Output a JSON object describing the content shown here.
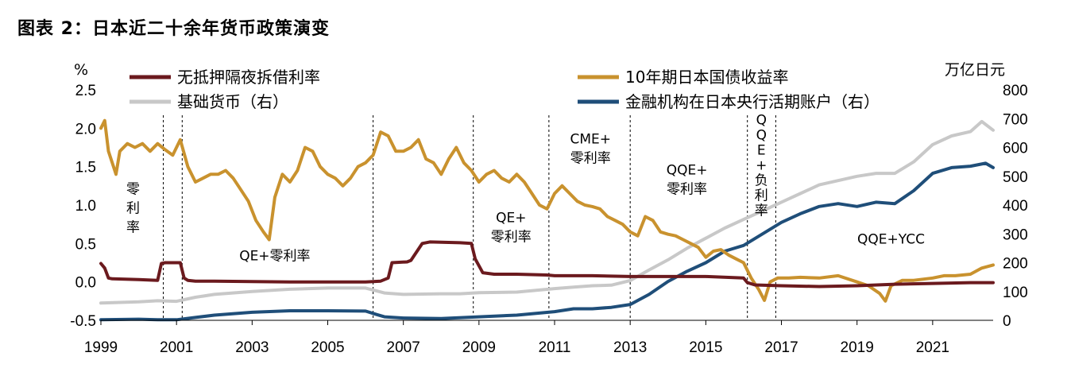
{
  "chart_data": {
    "type": "line",
    "title": "图表 2：日本近二十余年货币政策演变",
    "left_axis_unit": "%",
    "right_axis_unit": "万亿日元",
    "ylim_left": [
      -0.5,
      2.5
    ],
    "ylim_right": [
      0,
      800
    ],
    "yticks_left": [
      "2.5",
      "2.0",
      "1.5",
      "1.0",
      "0.5",
      "0.0",
      "-0.5"
    ],
    "yticks_right": [
      "800",
      "700",
      "600",
      "500",
      "400",
      "300",
      "200",
      "100",
      "0"
    ],
    "xticks": [
      "1999",
      "2001",
      "2003",
      "2005",
      "2007",
      "2009",
      "2011",
      "2013",
      "2015",
      "2017",
      "2019",
      "2021"
    ],
    "xlim": [
      1999.0,
      2022.6
    ],
    "legend_placement": "top",
    "colors": {
      "call_rate": "#6b1a1e",
      "jgb10y": "#c9922e",
      "monetary_base": "#c8c8c8",
      "boj_current": "#1f4e79"
    },
    "series": [
      {
        "key": "call_rate",
        "name": "无抵押隔夜拆借利率",
        "axis": "left",
        "x": [
          1999.0,
          1999.1,
          1999.2,
          1999.3,
          2000.0,
          2000.5,
          2000.6,
          2000.7,
          2001.1,
          2001.2,
          2001.3,
          2001.5,
          2002.0,
          2004.0,
          2006.0,
          2006.4,
          2006.6,
          2006.7,
          2007.1,
          2007.2,
          2007.5,
          2007.7,
          2008.5,
          2008.8,
          2008.9,
          2009.1,
          2009.4,
          2010.0,
          2010.8,
          2011.0,
          2012.0,
          2013.0,
          2014.0,
          2015.0,
          2016.0,
          2016.1,
          2016.3,
          2017.0,
          2018.0,
          2019.0,
          2020.0,
          2021.0,
          2022.0,
          2022.6
        ],
        "y": [
          0.24,
          0.18,
          0.05,
          0.04,
          0.03,
          0.02,
          0.24,
          0.25,
          0.25,
          0.05,
          0.02,
          0.01,
          0.01,
          0.0,
          0.0,
          0.01,
          0.05,
          0.25,
          0.26,
          0.28,
          0.5,
          0.52,
          0.51,
          0.5,
          0.3,
          0.12,
          0.1,
          0.1,
          0.09,
          0.08,
          0.08,
          0.07,
          0.07,
          0.07,
          0.05,
          -0.01,
          -0.04,
          -0.05,
          -0.06,
          -0.05,
          -0.03,
          -0.02,
          -0.01,
          -0.01
        ]
      },
      {
        "key": "jgb10y",
        "name": "10年期日本国债收益率",
        "axis": "left",
        "x": [
          1999.0,
          1999.1,
          1999.2,
          1999.4,
          1999.5,
          1999.7,
          1999.9,
          2000.1,
          2000.3,
          2000.5,
          2000.7,
          2000.9,
          2001.1,
          2001.3,
          2001.5,
          2001.7,
          2001.9,
          2002.1,
          2002.3,
          2002.5,
          2002.7,
          2002.9,
          2003.1,
          2003.3,
          2003.45,
          2003.6,
          2003.8,
          2004.0,
          2004.2,
          2004.4,
          2004.6,
          2004.8,
          2005.0,
          2005.2,
          2005.4,
          2005.6,
          2005.8,
          2006.0,
          2006.2,
          2006.4,
          2006.6,
          2006.8,
          2007.0,
          2007.2,
          2007.4,
          2007.6,
          2007.8,
          2008.0,
          2008.2,
          2008.4,
          2008.6,
          2008.8,
          2009.0,
          2009.2,
          2009.4,
          2009.6,
          2009.8,
          2010.0,
          2010.2,
          2010.4,
          2010.6,
          2010.8,
          2011.0,
          2011.2,
          2011.4,
          2011.6,
          2011.8,
          2012.0,
          2012.2,
          2012.4,
          2012.6,
          2012.8,
          2013.0,
          2013.2,
          2013.4,
          2013.6,
          2013.8,
          2014.0,
          2014.2,
          2014.4,
          2014.6,
          2014.8,
          2015.0,
          2015.2,
          2015.4,
          2015.6,
          2015.8,
          2016.0,
          2016.2,
          2016.4,
          2016.55,
          2016.7,
          2016.9,
          2017.0,
          2017.2,
          2017.5,
          2018.0,
          2018.5,
          2019.0,
          2019.3,
          2019.6,
          2019.75,
          2019.9,
          2020.2,
          2020.5,
          2021.0,
          2021.3,
          2021.6,
          2022.0,
          2022.3,
          2022.6
        ],
        "y": [
          2.0,
          2.1,
          1.7,
          1.4,
          1.7,
          1.8,
          1.75,
          1.8,
          1.7,
          1.8,
          1.72,
          1.65,
          1.85,
          1.5,
          1.3,
          1.35,
          1.4,
          1.4,
          1.45,
          1.35,
          1.2,
          1.05,
          0.8,
          0.65,
          0.55,
          1.1,
          1.4,
          1.3,
          1.45,
          1.75,
          1.7,
          1.5,
          1.4,
          1.35,
          1.25,
          1.35,
          1.5,
          1.55,
          1.65,
          1.95,
          1.9,
          1.7,
          1.7,
          1.75,
          1.85,
          1.6,
          1.55,
          1.4,
          1.6,
          1.75,
          1.55,
          1.45,
          1.3,
          1.4,
          1.45,
          1.35,
          1.3,
          1.4,
          1.3,
          1.15,
          1.0,
          0.95,
          1.15,
          1.25,
          1.15,
          1.05,
          1.0,
          0.98,
          0.95,
          0.85,
          0.8,
          0.75,
          0.65,
          0.6,
          0.85,
          0.8,
          0.65,
          0.62,
          0.6,
          0.55,
          0.5,
          0.45,
          0.32,
          0.4,
          0.42,
          0.35,
          0.3,
          0.25,
          0.05,
          -0.1,
          -0.24,
          0.0,
          0.05,
          0.05,
          0.05,
          0.06,
          0.05,
          0.08,
          0.0,
          -0.05,
          -0.15,
          -0.25,
          -0.05,
          0.02,
          0.02,
          0.05,
          0.08,
          0.08,
          0.1,
          0.18,
          0.22
        ]
      },
      {
        "key": "monetary_base",
        "name": "基础货币（右）",
        "axis": "right",
        "x": [
          1999.0,
          2000.0,
          2000.5,
          2001.0,
          2001.5,
          2002.0,
          2003.0,
          2004.0,
          2005.0,
          2006.0,
          2006.5,
          2007.0,
          2008.0,
          2008.5,
          2009.0,
          2010.0,
          2011.0,
          2011.5,
          2012.0,
          2012.5,
          2013.0,
          2013.5,
          2014.0,
          2014.5,
          2015.0,
          2015.5,
          2016.0,
          2016.5,
          2017.0,
          2017.5,
          2018.0,
          2018.5,
          2019.0,
          2019.5,
          2020.0,
          2020.5,
          2021.0,
          2021.5,
          2022.0,
          2022.3,
          2022.6
        ],
        "y": [
          60,
          64,
          68,
          66,
          80,
          90,
          100,
          108,
          112,
          112,
          95,
          90,
          92,
          92,
          96,
          98,
          110,
          115,
          120,
          122,
          138,
          175,
          210,
          250,
          285,
          320,
          350,
          380,
          410,
          440,
          470,
          485,
          500,
          510,
          510,
          550,
          610,
          640,
          655,
          690,
          660
        ]
      },
      {
        "key": "boj_current",
        "name": "金融机构在日本央行活期账户（右）",
        "axis": "right",
        "x": [
          1999.0,
          2000.0,
          2000.5,
          2001.0,
          2001.5,
          2002.0,
          2003.0,
          2004.0,
          2005.0,
          2006.0,
          2006.3,
          2006.5,
          2007.0,
          2008.0,
          2009.0,
          2010.0,
          2011.0,
          2011.5,
          2012.0,
          2012.5,
          2013.0,
          2013.5,
          2014.0,
          2014.5,
          2015.0,
          2015.5,
          2016.0,
          2016.5,
          2017.0,
          2017.5,
          2018.0,
          2018.5,
          2019.0,
          2019.5,
          2020.0,
          2020.5,
          2021.0,
          2021.5,
          2022.0,
          2022.4,
          2022.6
        ],
        "y": [
          2,
          4,
          2,
          2,
          10,
          18,
          28,
          33,
          33,
          32,
          20,
          12,
          8,
          6,
          12,
          18,
          30,
          40,
          40,
          45,
          55,
          90,
          135,
          170,
          200,
          240,
          260,
          300,
          340,
          370,
          395,
          405,
          395,
          410,
          405,
          450,
          510,
          530,
          535,
          545,
          530
        ]
      }
    ],
    "vlines": [
      2000.65,
      2001.15,
      2006.2,
      2008.85,
      2010.85,
      2013.0,
      2016.1,
      2016.85
    ],
    "annotations": [
      {
        "key": "a1",
        "text": "零\n利\n率",
        "x": 1999.85,
        "y": 1.15
      },
      {
        "key": "a2",
        "text": "QE+零利率",
        "x": 2003.6,
        "y": 0.28
      },
      {
        "key": "a3",
        "text": "QE+\n零利率",
        "x": 2009.85,
        "y": 0.78
      },
      {
        "key": "a4",
        "text": "CME+\n零利率",
        "x": 2011.95,
        "y": 1.8
      },
      {
        "key": "a5",
        "text": "QQE+\n零利率",
        "x": 2014.5,
        "y": 1.4
      },
      {
        "key": "a6",
        "text": "Q\nQ\nE\n+\n负\n利\n率",
        "x": 2016.47,
        "y": 2.05
      },
      {
        "key": "a7",
        "text": "QQE+YCC",
        "x": 2019.9,
        "y": 0.5
      }
    ]
  }
}
